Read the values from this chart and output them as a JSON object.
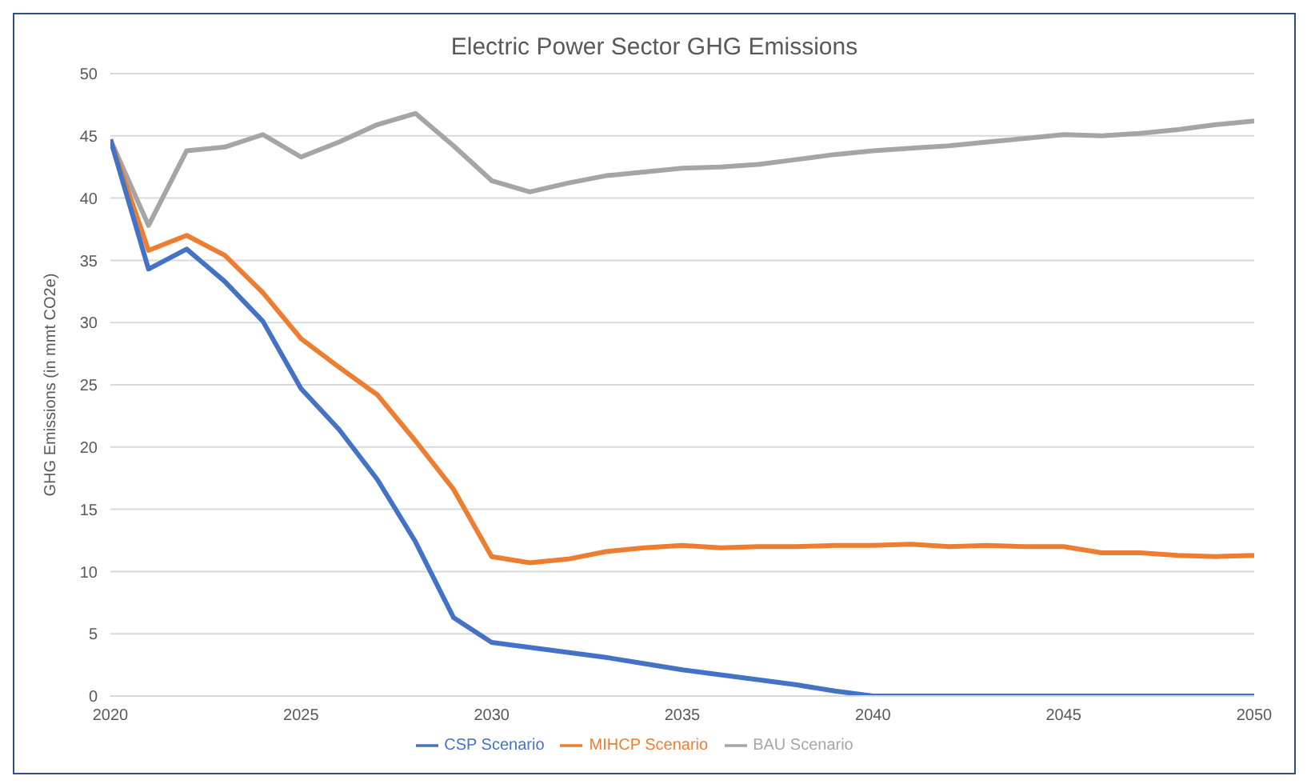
{
  "chart_data": {
    "type": "line",
    "title": "Electric Power Sector GHG Emissions",
    "ylabel": "GHG Emissions (in mmt CO2e)",
    "x": [
      2020,
      2021,
      2022,
      2023,
      2024,
      2025,
      2026,
      2027,
      2028,
      2029,
      2030,
      2031,
      2032,
      2033,
      2034,
      2035,
      2036,
      2037,
      2038,
      2039,
      2040,
      2041,
      2042,
      2043,
      2044,
      2045,
      2046,
      2047,
      2048,
      2049,
      2050
    ],
    "series": [
      {
        "name": "CSP Scenario",
        "color": "#4472c4",
        "values": [
          44.7,
          34.3,
          35.9,
          33.3,
          30.1,
          24.7,
          21.4,
          17.4,
          12.4,
          6.3,
          4.3,
          3.9,
          3.5,
          3.1,
          2.6,
          2.1,
          1.7,
          1.3,
          0.9,
          0.4,
          0,
          0,
          0,
          0,
          0,
          0,
          0,
          0,
          0,
          0,
          0
        ]
      },
      {
        "name": "MIHCP Scenario",
        "color": "#ed7d31",
        "values": [
          44.7,
          35.8,
          37.0,
          35.4,
          32.4,
          28.7,
          26.4,
          24.2,
          20.5,
          16.6,
          11.2,
          10.7,
          11.0,
          11.6,
          11.9,
          12.1,
          11.9,
          12.0,
          12.0,
          12.1,
          12.1,
          12.2,
          12.0,
          12.1,
          12.0,
          12.0,
          11.5,
          11.5,
          11.3,
          11.2,
          11.3
        ]
      },
      {
        "name": "BAU Scenario",
        "color": "#a5a5a5",
        "values": [
          44.7,
          37.8,
          43.8,
          44.1,
          45.1,
          43.3,
          44.5,
          45.9,
          46.8,
          44.2,
          41.4,
          40.5,
          41.2,
          41.8,
          42.1,
          42.4,
          42.5,
          42.7,
          43.1,
          43.5,
          43.8,
          44.0,
          44.2,
          44.5,
          44.8,
          45.1,
          45.0,
          45.2,
          45.5,
          45.9,
          46.2
        ]
      }
    ],
    "xlim": [
      2020,
      2050
    ],
    "xticks": [
      2020,
      2025,
      2030,
      2035,
      2040,
      2045,
      2050
    ],
    "ylim": [
      0,
      50
    ],
    "yticks": [
      0,
      5,
      10,
      15,
      20,
      25,
      30,
      35,
      40,
      45,
      50
    ],
    "grid": "y",
    "legend": "bottom",
    "marker": "none",
    "line_style": "solid"
  }
}
